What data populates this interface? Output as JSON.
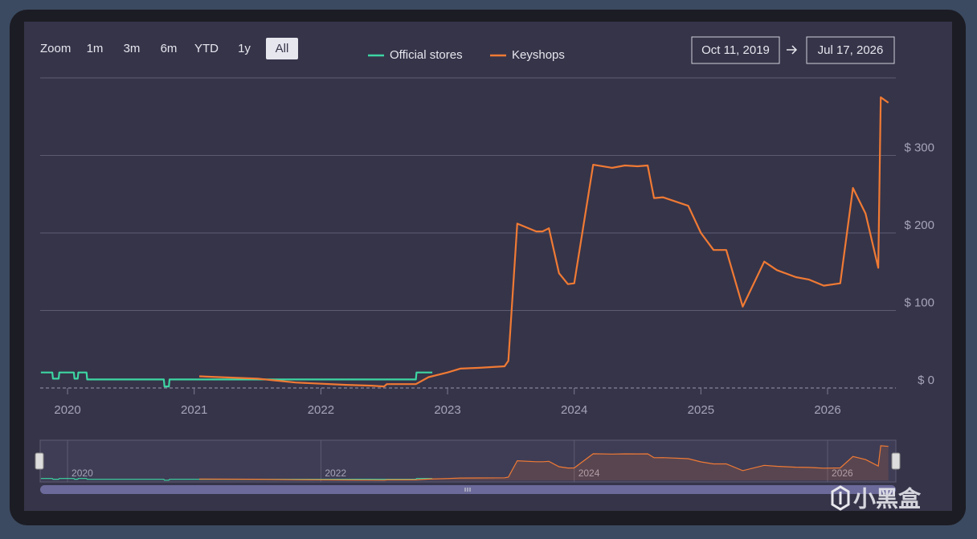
{
  "ui": {
    "zoom_label": "Zoom",
    "zoom_buttons": [
      "1m",
      "3m",
      "6m",
      "YTD",
      "1y",
      "All"
    ],
    "active_zoom_index": 5,
    "date_from": "Oct 11, 2019",
    "date_to": "Jul 17, 2026"
  },
  "watermark": "小黑盒",
  "chart_data": {
    "type": "line",
    "xlim": [
      2019.784,
      2026.539
    ],
    "xticks": [
      2020,
      2021,
      2022,
      2023,
      2024,
      2025,
      2026
    ],
    "ylim": [
      0,
      400
    ],
    "yticks": [
      {
        "value": 0,
        "label": "$ 0"
      },
      {
        "value": 100,
        "label": "$ 100"
      },
      {
        "value": 200,
        "label": "$ 200"
      },
      {
        "value": 300,
        "label": "$ 300"
      }
    ],
    "grid": true,
    "navigator": {
      "xticks": [
        2020,
        2022,
        2024,
        2026
      ]
    },
    "series": [
      {
        "name": "Official stores",
        "color": "#3dd6a3",
        "x": [
          2019.79,
          2019.88,
          2019.885,
          2019.93,
          2019.935,
          2020.05,
          2020.055,
          2020.08,
          2020.085,
          2020.15,
          2020.155,
          2020.5,
          2020.76,
          2020.765,
          2020.8,
          2020.805,
          2021.5,
          2022.0,
          2022.75,
          2022.755,
          2022.88
        ],
        "values": [
          20,
          20,
          12,
          12,
          20,
          20,
          12,
          12,
          20,
          20,
          11,
          11,
          11,
          2,
          2,
          11,
          11,
          11,
          11,
          20,
          20
        ]
      },
      {
        "name": "Keyshops",
        "color": "#f07a34",
        "x": [
          2021.04,
          2021.5,
          2021.8,
          2022.2,
          2022.4,
          2022.5,
          2022.52,
          2022.75,
          2022.85,
          2023.0,
          2023.1,
          2023.25,
          2023.45,
          2023.48,
          2023.55,
          2023.7,
          2023.75,
          2023.8,
          2023.88,
          2023.95,
          2024.0,
          2024.15,
          2024.3,
          2024.4,
          2024.5,
          2024.58,
          2024.63,
          2024.7,
          2024.9,
          2025.0,
          2025.1,
          2025.2,
          2025.33,
          2025.5,
          2025.6,
          2025.75,
          2025.85,
          2025.97,
          2026.1,
          2026.2,
          2026.3,
          2026.4,
          2026.42,
          2026.48
        ],
        "values": [
          15,
          12,
          7,
          4,
          3,
          2,
          5,
          5,
          14,
          20,
          25,
          26,
          28,
          35,
          212,
          202,
          202,
          206,
          148,
          134,
          135,
          288,
          284,
          287,
          286,
          287,
          245,
          246,
          235,
          200,
          178,
          178,
          105,
          163,
          152,
          143,
          140,
          132,
          135,
          258,
          225,
          155,
          375,
          368
        ]
      }
    ]
  }
}
